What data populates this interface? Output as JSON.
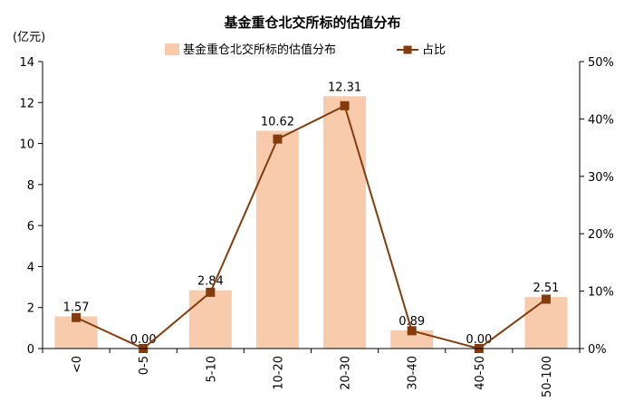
{
  "chart_data": {
    "type": "bar",
    "title": "基金重仓北交所标的估值分布",
    "ylabel": "(亿元)",
    "categories": [
      "<0",
      "0-5",
      "5-10",
      "10-20",
      "20-30",
      "30-40",
      "40-50",
      "50-100"
    ],
    "y_ticks": [
      "0",
      "2",
      "4",
      "6",
      "8",
      "10",
      "12",
      "14"
    ],
    "y2_ticks": [
      "0%",
      "10%",
      "20%",
      "30%",
      "40%",
      "50%"
    ],
    "ylim": [
      0,
      14
    ],
    "y2lim": [
      0,
      50
    ],
    "grid": false,
    "legend_position": "top-center",
    "series": [
      {
        "name": "基金重仓北交所标的估值分布",
        "type": "bar",
        "axis": "left",
        "color": "#f8cbad",
        "values": [
          1.57,
          0.0,
          2.84,
          10.62,
          12.31,
          0.89,
          0.0,
          2.51
        ],
        "labels": [
          "1.57",
          "0.00",
          "2.84",
          "10.62",
          "12.31",
          "0.89",
          "0.00",
          "2.51"
        ]
      },
      {
        "name": "占比",
        "type": "line",
        "axis": "right",
        "color": "#843c0c",
        "values": [
          5.4,
          0.0,
          9.8,
          36.5,
          42.3,
          3.1,
          0.0,
          8.6
        ]
      }
    ]
  }
}
